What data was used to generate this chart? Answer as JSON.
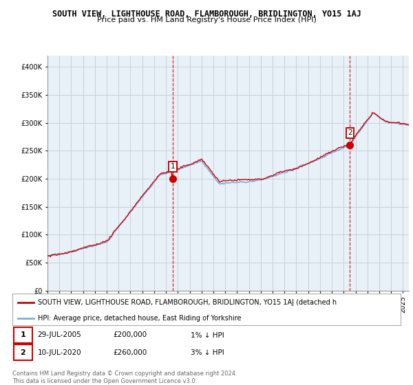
{
  "title": "SOUTH VIEW, LIGHTHOUSE ROAD, FLAMBOROUGH, BRIDLINGTON, YO15 1AJ",
  "subtitle": "Price paid vs. HM Land Registry's House Price Index (HPI)",
  "ylabel_ticks": [
    "£0",
    "£50K",
    "£100K",
    "£150K",
    "£200K",
    "£250K",
    "£300K",
    "£350K",
    "£400K"
  ],
  "ytick_values": [
    0,
    50000,
    100000,
    150000,
    200000,
    250000,
    300000,
    350000,
    400000
  ],
  "ylim": [
    0,
    420000
  ],
  "xlim_start": 1995.0,
  "xlim_end": 2025.5,
  "sale1_x": 2005.57,
  "sale1_y": 200000,
  "sale1_label": "1",
  "sale2_x": 2020.53,
  "sale2_y": 260000,
  "sale2_label": "2",
  "hpi_color": "#7ab0e0",
  "price_color": "#cc0000",
  "marker_color": "#cc0000",
  "bg_color": "#ffffff",
  "plot_bg_color": "#e8f0f8",
  "grid_color": "#c8d0d8",
  "legend_line1": "SOUTH VIEW, LIGHTHOUSE ROAD, FLAMBOROUGH, BRIDLINGTON, YO15 1AJ (detached h",
  "legend_line2": "HPI: Average price, detached house, East Riding of Yorkshire",
  "annotation1_date": "29-JUL-2005",
  "annotation1_price": "£200,000",
  "annotation1_hpi": "1% ↓ HPI",
  "annotation2_date": "10-JUL-2020",
  "annotation2_price": "£260,000",
  "annotation2_hpi": "3% ↓ HPI",
  "footer": "Contains HM Land Registry data © Crown copyright and database right 2024.\nThis data is licensed under the Open Government Licence v3.0."
}
